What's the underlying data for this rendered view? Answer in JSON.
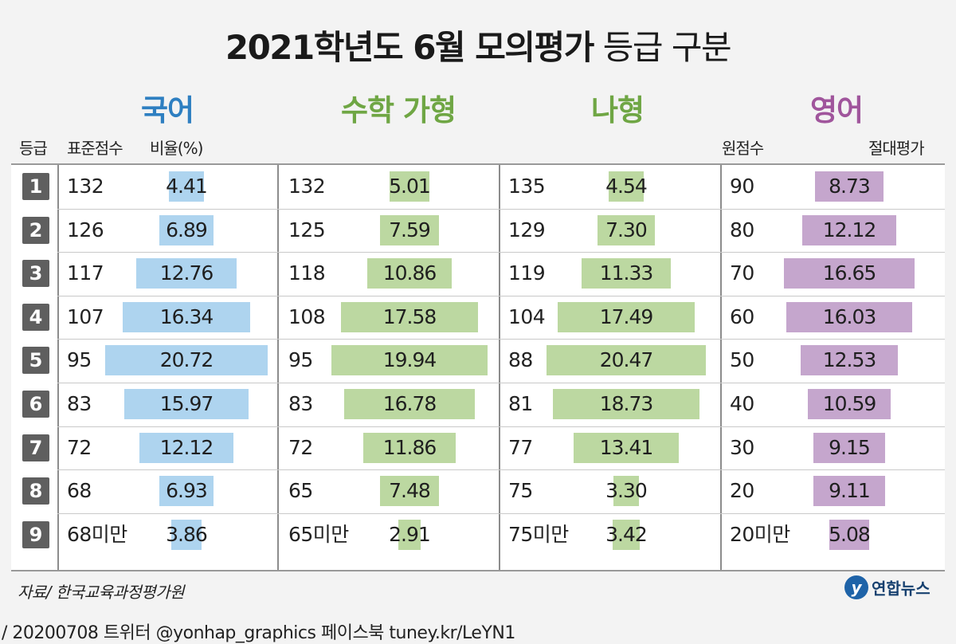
{
  "title_main": "2021학년도 6월 모의평가",
  "title_sub": "등급 구분",
  "subjects": [
    "국어",
    "수학 가형",
    "나형",
    "영어"
  ],
  "headers": {
    "grade": "등급",
    "std_score": "표준점수",
    "ratio": "비율(%)",
    "raw_score": "원점수",
    "absolute": "절대평가"
  },
  "colors": {
    "korean": "#aed4ef",
    "math": "#bcd8a1",
    "english": "#c5a6cd",
    "korean_text": "#2e7fc1",
    "math_text": "#6fa644",
    "english_text": "#a0559c",
    "badge": "#5f5f5f"
  },
  "source": "자료/ 한국교육과정평가원",
  "logo_text": "연합뉴스",
  "footer": "/ 20200708  트위터 @yonhap_graphics  페이스북 tuney.kr/LeYN1",
  "chart_data": {
    "type": "table",
    "grades": [
      "1",
      "2",
      "3",
      "4",
      "5",
      "6",
      "7",
      "8",
      "9"
    ],
    "series": [
      {
        "name": "국어",
        "scores": [
          "132",
          "126",
          "117",
          "107",
          "95",
          "83",
          "72",
          "68",
          "68미만"
        ],
        "values": [
          4.41,
          6.89,
          12.76,
          16.34,
          20.72,
          15.97,
          12.12,
          6.93,
          3.86
        ],
        "labels": [
          "4.41",
          "6.89",
          "12.76",
          "16.34",
          "20.72",
          "15.97",
          "12.12",
          "6.93",
          "3.86"
        ]
      },
      {
        "name": "수학 가형",
        "scores": [
          "132",
          "125",
          "118",
          "108",
          "95",
          "83",
          "72",
          "65",
          "65미만"
        ],
        "values": [
          5.01,
          7.59,
          10.86,
          17.58,
          19.94,
          16.78,
          11.86,
          7.48,
          2.91
        ],
        "labels": [
          "5.01",
          "7.59",
          "10.86",
          "17.58",
          "19.94",
          "16.78",
          "11.86",
          "7.48",
          "2.91"
        ]
      },
      {
        "name": "나형",
        "scores": [
          "135",
          "129",
          "119",
          "104",
          "88",
          "81",
          "77",
          "75",
          "75미만"
        ],
        "values": [
          4.54,
          7.3,
          11.33,
          17.49,
          20.47,
          18.73,
          13.41,
          3.3,
          3.42
        ],
        "labels": [
          "4.54",
          "7.30",
          "11.33",
          "17.49",
          "20.47",
          "18.73",
          "13.41",
          "3.30",
          "3.42"
        ]
      },
      {
        "name": "영어",
        "scores": [
          "90",
          "80",
          "70",
          "60",
          "50",
          "40",
          "30",
          "20",
          "20미만"
        ],
        "values": [
          8.73,
          12.12,
          16.65,
          16.03,
          12.53,
          10.59,
          9.15,
          9.11,
          5.08
        ],
        "labels": [
          "8.73",
          "12.12",
          "16.65",
          "16.03",
          "12.53",
          "10.59",
          "9.15",
          "9.11",
          "5.08"
        ]
      }
    ]
  }
}
